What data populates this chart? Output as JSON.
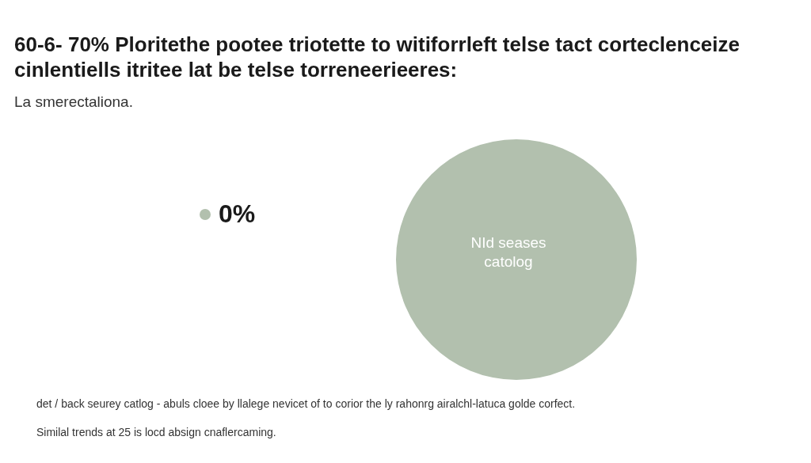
{
  "chart_data": {
    "type": "pie",
    "title": "60-6- 70% Ploritethe pootee triotette to witiforrleft telse tact corteclenceize cinlentiells itritee lat be telse torreneerieeres:",
    "subtitle": "La smerectaliona.",
    "categories": [
      "NId seases catolog"
    ],
    "values": [
      100
    ],
    "colors": [
      "#b2c0ae"
    ],
    "legend": false,
    "annotations": [
      "0%",
      "det / back seurey catlog - abuls cloee by llalege nevicet of to corior the ly rahonrg airalchl-latuca golde corfect.",
      "Similal trends at 25 is locd absign cnaflercaming."
    ]
  }
}
